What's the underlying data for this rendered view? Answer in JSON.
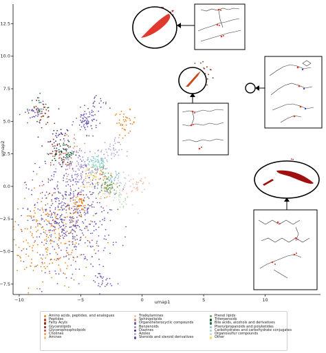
{
  "chart_data": {
    "type": "scatter",
    "xlabel": "umap1",
    "ylabel": "umap2",
    "xlim": [
      -10.5,
      14.5
    ],
    "ylim": [
      -8.3,
      14.0
    ],
    "xticks": [
      -10,
      -5,
      0,
      5,
      10
    ],
    "yticks": [
      -7.5,
      -5.0,
      -2.5,
      0.0,
      2.5,
      5.0,
      7.5,
      10.0,
      12.5
    ],
    "xtick_labels": [
      "−10",
      "−5",
      "0",
      "5",
      "10"
    ],
    "ytick_labels": [
      "−7.5",
      "−5.0",
      "−2.5",
      "0.0",
      "2.5",
      "5.0",
      "7.5",
      "10.0",
      "12.5"
    ],
    "grid": false,
    "legend_position": "bottom",
    "series": [
      {
        "name": "Amino acids, peptides, and analogues",
        "color": "#e8821e",
        "clusters": [
          {
            "x": -7.5,
            "y": -3.8,
            "n": 260
          },
          {
            "x": -1.4,
            "y": 4.9,
            "n": 40
          },
          {
            "x": -5.2,
            "y": -1.5,
            "n": 60
          }
        ]
      },
      {
        "name": "Peptides",
        "color": "#c0392b",
        "clusters": [
          {
            "x": 1.8,
            "y": 12.8,
            "n": 70
          },
          {
            "x": 12.0,
            "y": 1.0,
            "n": 80
          }
        ]
      },
      {
        "name": "Fatty Acyls",
        "color": "#8b2e10",
        "clusters": [
          {
            "x": -8.2,
            "y": 5.6,
            "n": 35
          },
          {
            "x": 5.0,
            "y": 8.8,
            "n": 20
          }
        ]
      },
      {
        "name": "Glycerolipids",
        "color": "#a01010",
        "clusters": [
          {
            "x": -7.2,
            "y": 3.0,
            "n": 15
          }
        ]
      },
      {
        "name": "Glycerophospholipids",
        "color": "#cc4a3a",
        "clusters": [
          {
            "x": -6.5,
            "y": 1.8,
            "n": 25
          }
        ]
      },
      {
        "name": "Cholines",
        "color": "#f0a050",
        "clusters": [
          {
            "x": -3.3,
            "y": 1.0,
            "n": 25
          }
        ]
      },
      {
        "name": "Amines",
        "color": "#f5c28a",
        "clusters": [
          {
            "x": -2.8,
            "y": -0.2,
            "n": 45
          }
        ]
      },
      {
        "name": "Trialkylamines",
        "color": "#f7b9a0",
        "clusters": [
          {
            "x": -0.5,
            "y": 0.2,
            "n": 35
          }
        ]
      },
      {
        "name": "Sphingolipids",
        "color": "#d98d6e",
        "clusters": [
          {
            "x": -5.5,
            "y": 3.5,
            "n": 20
          }
        ]
      },
      {
        "name": "Organoheterocyclic compounds",
        "color": "#6a55b8",
        "clusters": [
          {
            "x": -6.0,
            "y": -2.5,
            "n": 480
          },
          {
            "x": -4.5,
            "y": 5.0,
            "n": 70
          },
          {
            "x": -8.8,
            "y": 5.5,
            "n": 30
          },
          {
            "x": -3.3,
            "y": -7.3,
            "n": 30
          }
        ]
      },
      {
        "name": "Benzenoids",
        "color": "#9b88d4",
        "clusters": [
          {
            "x": -5.0,
            "y": 1.5,
            "n": 130
          }
        ]
      },
      {
        "name": "Diazines",
        "color": "#3a2a8a",
        "clusters": [
          {
            "x": -7.0,
            "y": 3.8,
            "n": 25
          }
        ]
      },
      {
        "name": "Azoles",
        "color": "#b4a5e0",
        "clusters": [
          {
            "x": -2.5,
            "y": 2.8,
            "n": 40
          }
        ]
      },
      {
        "name": "Steroids and steroid derivatives",
        "color": "#5e4aa0",
        "clusters": [
          {
            "x": -3.8,
            "y": 6.2,
            "n": 20
          }
        ]
      },
      {
        "name": "Prenol lipids",
        "color": "#5da05d",
        "clusters": [
          {
            "x": -2.8,
            "y": 0.1,
            "n": 60
          }
        ]
      },
      {
        "name": "Triterpenoids",
        "color": "#0e4d2e",
        "clusters": [
          {
            "x": -6.4,
            "y": 2.6,
            "n": 55
          }
        ]
      },
      {
        "name": "Bile acids, alcohols and derivatives",
        "color": "#1e6e3e",
        "clusters": [
          {
            "x": -8.5,
            "y": 6.2,
            "n": 15
          }
        ]
      },
      {
        "name": "Phenylpropanoids and polyketides",
        "color": "#7fd3c0",
        "clusters": [
          {
            "x": -3.6,
            "y": 1.8,
            "n": 60
          }
        ]
      },
      {
        "name": "Carbohydrates and carbohydrate conjugates",
        "color": "#a8c8e8",
        "clusters": [
          {
            "x": -2.0,
            "y": 0.5,
            "n": 35
          }
        ]
      },
      {
        "name": "Organosulfur compounds",
        "color": "#b8e0b0",
        "clusters": [
          {
            "x": -1.6,
            "y": -1.1,
            "n": 25
          }
        ]
      },
      {
        "name": "Other",
        "color": "#f5d560",
        "clusters": [
          {
            "x": -4.2,
            "y": 0.7,
            "n": 30
          }
        ]
      }
    ]
  },
  "legend": {
    "entries": [
      {
        "label": "Amino acids, peptides, and analogues",
        "color": "#e8821e"
      },
      {
        "label": "Peptides",
        "color": "#c0392b"
      },
      {
        "label": "Fatty Acyls",
        "color": "#8b2e10"
      },
      {
        "label": "Glycerolipids",
        "color": "#a01010"
      },
      {
        "label": "Glycerophospholipids",
        "color": "#cc4a3a"
      },
      {
        "label": "Cholines",
        "color": "#f0a050"
      },
      {
        "label": "Amines",
        "color": "#f5c28a"
      },
      {
        "label": "Trialkylamines",
        "color": "#f7b9a0"
      },
      {
        "label": "Sphingolipids",
        "color": "#d98d6e"
      },
      {
        "label": "Organoheterocyclic compounds",
        "color": "#6a55b8"
      },
      {
        "label": "Benzenoids",
        "color": "#9b88d4"
      },
      {
        "label": "Diazines",
        "color": "#3a2a8a"
      },
      {
        "label": "Azoles",
        "color": "#b4a5e0"
      },
      {
        "label": "Steroids and steroid derivatives",
        "color": "#5e4aa0"
      },
      {
        "label": "Prenol lipids",
        "color": "#5da05d"
      },
      {
        "label": "Triterpenoids",
        "color": "#0e4d2e"
      },
      {
        "label": "Bile acids, alcohols and derivatives",
        "color": "#1e6e3e"
      },
      {
        "label": "Phenylpropanoids and polyketides",
        "color": "#7fd3c0"
      },
      {
        "label": "Carbohydrates and carbohydrate conjugates",
        "color": "#a8c8e8"
      },
      {
        "label": "Organosulfur compounds",
        "color": "#b8e0b0"
      },
      {
        "label": "Other",
        "color": "#f5d560"
      }
    ]
  },
  "insets": [
    {
      "name": "inset-top-peptides",
      "blob_color": "#e03a2e"
    },
    {
      "name": "inset-middle-fatty-acyls",
      "blob_color": "#c84a1a"
    },
    {
      "name": "inset-right-small",
      "blob_color": "none"
    },
    {
      "name": "inset-bottom-right-peptides",
      "blob_color": "#a01010"
    }
  ]
}
